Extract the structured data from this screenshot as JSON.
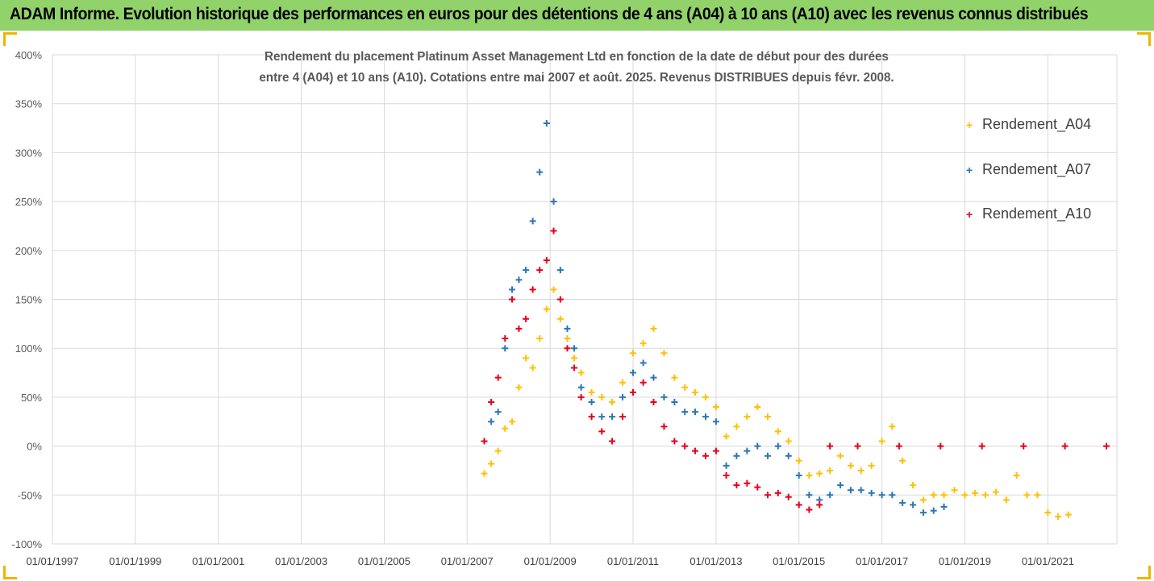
{
  "banner": {
    "title": "ADAM Informe. Evolution historique des performances en euros pour des détentions de 4 ans (A04) à 10 ans (A10) avec les revenus connus distribués"
  },
  "colors": {
    "banner_bg": "#92d26b",
    "A04": "#ffc000",
    "A07": "#2e75b6",
    "A10": "#e8001c",
    "corner_accent": "#f2b300"
  },
  "chart_data": {
    "type": "scatter",
    "title_lines": [
      "Rendement du placement Platinum Asset Management Ltd en fonction de la date de début pour des durées",
      "entre 4 (A04) et 10 ans (A10). Cotations entre mai 2007 et août. 2025. Revenus DISTRIBUES depuis févr. 2008."
    ],
    "xlabel": "",
    "ylabel": "",
    "x_tick_labels": [
      "01/01/1997",
      "01/01/1999",
      "01/01/2001",
      "01/01/2003",
      "01/01/2005",
      "01/01/2007",
      "01/01/2009",
      "01/01/2011",
      "01/01/2013",
      "01/01/2015",
      "01/01/2017",
      "01/01/2019",
      "01/01/2021"
    ],
    "xlim": [
      "1997-01-01",
      "2022-09-01"
    ],
    "y_tick_labels": [
      "400%",
      "350%",
      "300%",
      "250%",
      "200%",
      "150%",
      "100%",
      "50%",
      "0%",
      "-50%",
      "-100%"
    ],
    "ylim": [
      -1.0,
      4.0
    ],
    "grid": true,
    "legend_position": "right",
    "marker": "+",
    "series": [
      {
        "name": "Rendement_A04",
        "color": "#ffc000",
        "points": [
          [
            "2007-06-01",
            -0.28
          ],
          [
            "2007-08-01",
            -0.18
          ],
          [
            "2007-10-01",
            -0.05
          ],
          [
            "2007-12-01",
            0.18
          ],
          [
            "2008-02-01",
            0.25
          ],
          [
            "2008-04-01",
            0.6
          ],
          [
            "2008-06-01",
            0.9
          ],
          [
            "2008-08-01",
            0.8
          ],
          [
            "2008-10-01",
            1.1
          ],
          [
            "2008-12-01",
            1.4
          ],
          [
            "2009-02-01",
            1.6
          ],
          [
            "2009-04-01",
            1.3
          ],
          [
            "2009-06-01",
            1.1
          ],
          [
            "2009-08-01",
            0.9
          ],
          [
            "2009-10-01",
            0.75
          ],
          [
            "2010-01-01",
            0.55
          ],
          [
            "2010-04-01",
            0.5
          ],
          [
            "2010-07-01",
            0.45
          ],
          [
            "2010-10-01",
            0.65
          ],
          [
            "2011-01-01",
            0.95
          ],
          [
            "2011-04-01",
            1.05
          ],
          [
            "2011-07-01",
            1.2
          ],
          [
            "2011-10-01",
            0.95
          ],
          [
            "2012-01-01",
            0.7
          ],
          [
            "2012-04-01",
            0.6
          ],
          [
            "2012-07-01",
            0.55
          ],
          [
            "2012-10-01",
            0.5
          ],
          [
            "2013-01-01",
            0.4
          ],
          [
            "2013-04-01",
            0.1
          ],
          [
            "2013-07-01",
            0.2
          ],
          [
            "2013-10-01",
            0.3
          ],
          [
            "2014-01-01",
            0.4
          ],
          [
            "2014-04-01",
            0.3
          ],
          [
            "2014-07-01",
            0.15
          ],
          [
            "2014-10-01",
            0.05
          ],
          [
            "2015-01-01",
            -0.15
          ],
          [
            "2015-04-01",
            -0.3
          ],
          [
            "2015-07-01",
            -0.28
          ],
          [
            "2015-10-01",
            -0.25
          ],
          [
            "2016-01-01",
            -0.1
          ],
          [
            "2016-04-01",
            -0.2
          ],
          [
            "2016-07-01",
            -0.25
          ],
          [
            "2016-10-01",
            -0.2
          ],
          [
            "2017-01-01",
            0.05
          ],
          [
            "2017-04-01",
            0.2
          ],
          [
            "2017-07-01",
            -0.15
          ],
          [
            "2017-10-01",
            -0.4
          ],
          [
            "2018-01-01",
            -0.55
          ],
          [
            "2018-04-01",
            -0.5
          ],
          [
            "2018-07-01",
            -0.5
          ],
          [
            "2018-10-01",
            -0.45
          ],
          [
            "2019-01-01",
            -0.5
          ],
          [
            "2019-04-01",
            -0.48
          ],
          [
            "2019-07-01",
            -0.5
          ],
          [
            "2019-10-01",
            -0.47
          ],
          [
            "2020-01-01",
            -0.55
          ],
          [
            "2020-04-01",
            -0.3
          ],
          [
            "2020-07-01",
            -0.5
          ],
          [
            "2020-10-01",
            -0.5
          ],
          [
            "2021-01-01",
            -0.68
          ],
          [
            "2021-04-01",
            -0.72
          ],
          [
            "2021-07-01",
            -0.7
          ]
        ]
      },
      {
        "name": "Rendement_A07",
        "color": "#2e75b6",
        "points": [
          [
            "2007-06-01",
            0.05
          ],
          [
            "2007-08-01",
            0.25
          ],
          [
            "2007-10-01",
            0.35
          ],
          [
            "2007-12-01",
            1.0
          ],
          [
            "2008-02-01",
            1.6
          ],
          [
            "2008-04-01",
            1.7
          ],
          [
            "2008-06-01",
            1.8
          ],
          [
            "2008-08-01",
            2.3
          ],
          [
            "2008-10-01",
            2.8
          ],
          [
            "2008-12-01",
            3.3
          ],
          [
            "2009-02-01",
            2.5
          ],
          [
            "2009-04-01",
            1.8
          ],
          [
            "2009-06-01",
            1.2
          ],
          [
            "2009-08-01",
            1.0
          ],
          [
            "2009-10-01",
            0.6
          ],
          [
            "2010-01-01",
            0.45
          ],
          [
            "2010-04-01",
            0.3
          ],
          [
            "2010-07-01",
            0.3
          ],
          [
            "2010-10-01",
            0.5
          ],
          [
            "2011-01-01",
            0.75
          ],
          [
            "2011-04-01",
            0.85
          ],
          [
            "2011-07-01",
            0.7
          ],
          [
            "2011-10-01",
            0.5
          ],
          [
            "2012-01-01",
            0.45
          ],
          [
            "2012-04-01",
            0.35
          ],
          [
            "2012-07-01",
            0.35
          ],
          [
            "2012-10-01",
            0.3
          ],
          [
            "2013-01-01",
            0.25
          ],
          [
            "2013-04-01",
            -0.2
          ],
          [
            "2013-07-01",
            -0.1
          ],
          [
            "2013-10-01",
            -0.05
          ],
          [
            "2014-01-01",
            0.0
          ],
          [
            "2014-04-01",
            -0.1
          ],
          [
            "2014-07-01",
            0.0
          ],
          [
            "2014-10-01",
            -0.1
          ],
          [
            "2015-01-01",
            -0.3
          ],
          [
            "2015-04-01",
            -0.5
          ],
          [
            "2015-07-01",
            -0.55
          ],
          [
            "2015-10-01",
            -0.5
          ],
          [
            "2016-01-01",
            -0.4
          ],
          [
            "2016-04-01",
            -0.45
          ],
          [
            "2016-07-01",
            -0.45
          ],
          [
            "2016-10-01",
            -0.48
          ],
          [
            "2017-01-01",
            -0.5
          ],
          [
            "2017-04-01",
            -0.5
          ],
          [
            "2017-07-01",
            -0.58
          ],
          [
            "2017-10-01",
            -0.6
          ],
          [
            "2018-01-01",
            -0.68
          ],
          [
            "2018-04-01",
            -0.66
          ],
          [
            "2018-07-01",
            -0.62
          ]
        ]
      },
      {
        "name": "Rendement_A10",
        "color": "#e8001c",
        "points": [
          [
            "2007-06-01",
            0.05
          ],
          [
            "2007-08-01",
            0.45
          ],
          [
            "2007-10-01",
            0.7
          ],
          [
            "2007-12-01",
            1.1
          ],
          [
            "2008-02-01",
            1.5
          ],
          [
            "2008-04-01",
            1.2
          ],
          [
            "2008-06-01",
            1.3
          ],
          [
            "2008-08-01",
            1.6
          ],
          [
            "2008-10-01",
            1.8
          ],
          [
            "2008-12-01",
            1.9
          ],
          [
            "2009-02-01",
            2.2
          ],
          [
            "2009-04-01",
            1.5
          ],
          [
            "2009-06-01",
            1.0
          ],
          [
            "2009-08-01",
            0.8
          ],
          [
            "2009-10-01",
            0.5
          ],
          [
            "2010-01-01",
            0.3
          ],
          [
            "2010-04-01",
            0.15
          ],
          [
            "2010-07-01",
            0.05
          ],
          [
            "2010-10-01",
            0.3
          ],
          [
            "2011-01-01",
            0.55
          ],
          [
            "2011-04-01",
            0.65
          ],
          [
            "2011-07-01",
            0.45
          ],
          [
            "2011-10-01",
            0.2
          ],
          [
            "2012-01-01",
            0.05
          ],
          [
            "2012-04-01",
            0.0
          ],
          [
            "2012-07-01",
            -0.05
          ],
          [
            "2012-10-01",
            -0.1
          ],
          [
            "2013-01-01",
            -0.05
          ],
          [
            "2013-04-01",
            -0.3
          ],
          [
            "2013-07-01",
            -0.4
          ],
          [
            "2013-10-01",
            -0.38
          ],
          [
            "2014-01-01",
            -0.42
          ],
          [
            "2014-04-01",
            -0.5
          ],
          [
            "2014-07-01",
            -0.48
          ],
          [
            "2014-10-01",
            -0.52
          ],
          [
            "2015-01-01",
            -0.6
          ],
          [
            "2015-04-01",
            -0.65
          ],
          [
            "2015-07-01",
            -0.6
          ],
          [
            "2015-10-01",
            0.0
          ],
          [
            "2016-06-01",
            0.0
          ],
          [
            "2017-06-01",
            0.0
          ],
          [
            "2018-06-01",
            0.0
          ],
          [
            "2019-06-01",
            0.0
          ],
          [
            "2020-06-01",
            0.0
          ],
          [
            "2021-06-01",
            0.0
          ],
          [
            "2022-06-01",
            0.0
          ]
        ]
      }
    ]
  }
}
